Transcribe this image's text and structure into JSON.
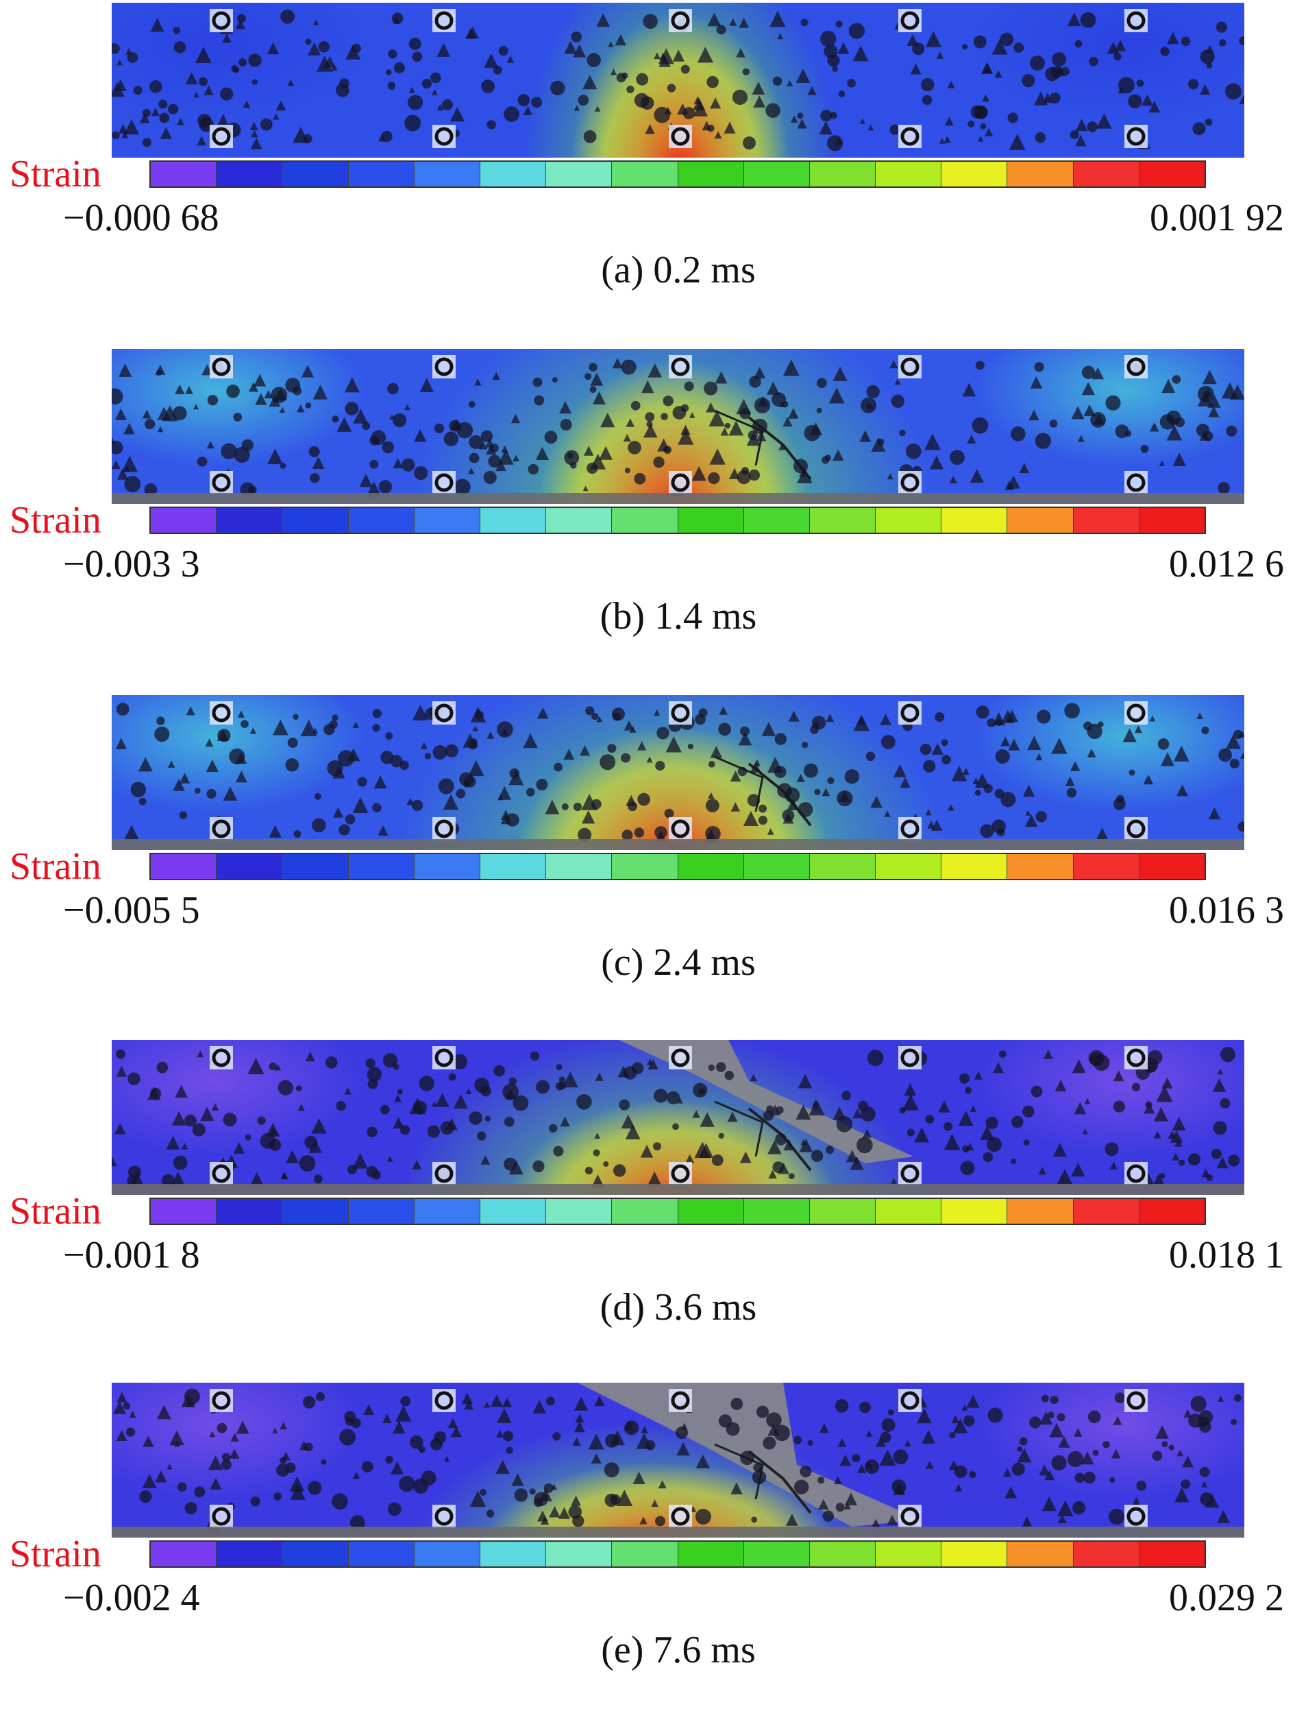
{
  "figure": {
    "legend_title": "Strain",
    "colormap": [
      "#7a3cf0",
      "#2a2ad8",
      "#1f3fe0",
      "#2a4fea",
      "#3a7af4",
      "#5cd8e0",
      "#7ae8c0",
      "#64e070",
      "#3ad020",
      "#4ad830",
      "#80e030",
      "#b0ec20",
      "#e8f020",
      "#f89028",
      "#f23030",
      "#ee1c1c"
    ],
    "panels": [
      {
        "caption": "(a) 0.2 ms",
        "min": "−0.000 68",
        "max": "0.001 92"
      },
      {
        "caption": "(b) 1.4 ms",
        "min": "−0.003 3",
        "max": "0.012 6"
      },
      {
        "caption": "(c) 2.4 ms",
        "min": "−0.005 5",
        "max": "0.016 3"
      },
      {
        "caption": "(d) 3.6 ms",
        "min": "−0.001 8",
        "max": "0.018 1"
      },
      {
        "caption": "(e) 7.6 ms",
        "min": "−0.002 4",
        "max": "0.029 2"
      }
    ]
  }
}
